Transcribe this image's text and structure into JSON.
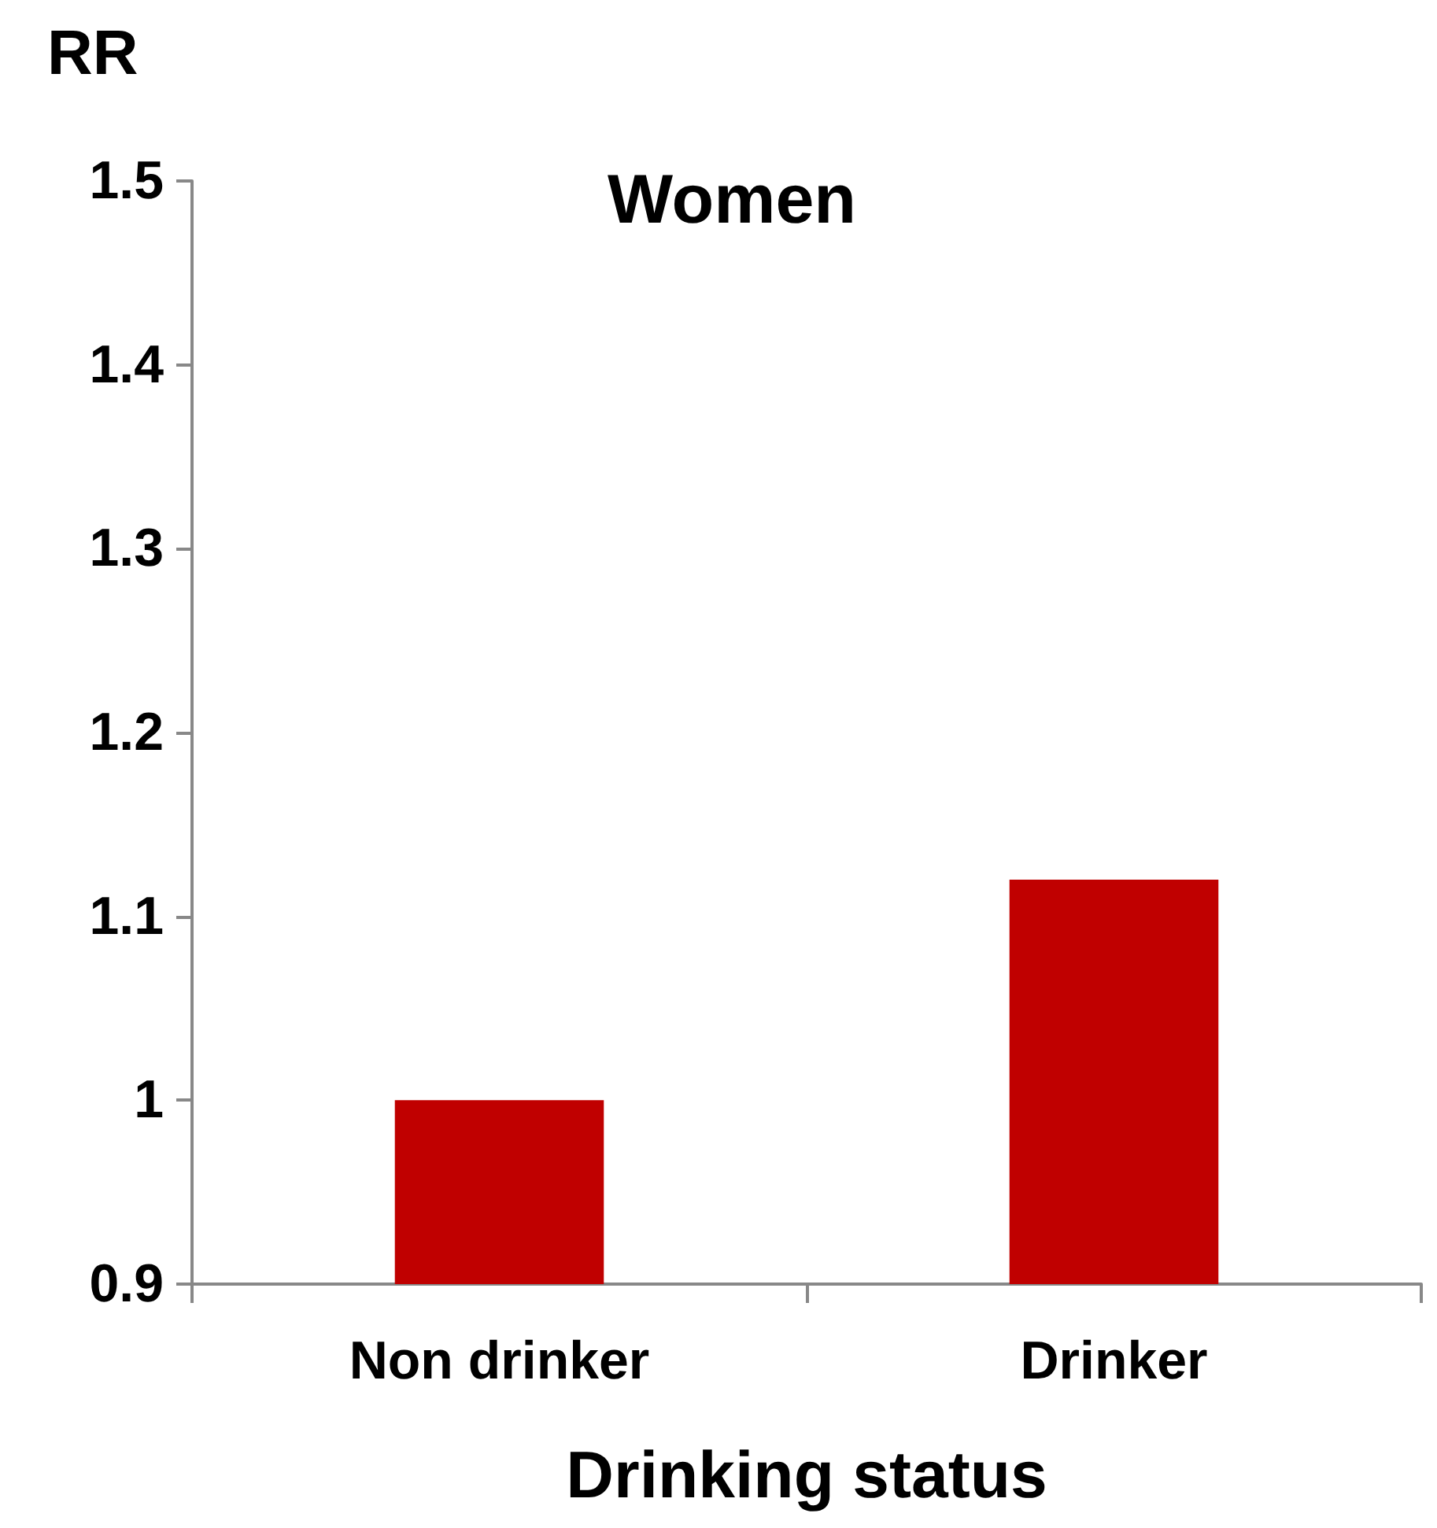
{
  "chart_data": {
    "type": "bar",
    "title": "Women",
    "xlabel": "Drinking status",
    "ylabel": "RR",
    "categories": [
      "Non drinker",
      "Drinker"
    ],
    "values": [
      1.0,
      1.12
    ],
    "color": "#c00000",
    "ylim": [
      0.9,
      1.5
    ],
    "yticks": [
      0.9,
      1,
      1.1,
      1.2,
      1.3,
      1.4,
      1.5
    ],
    "grid": false
  }
}
